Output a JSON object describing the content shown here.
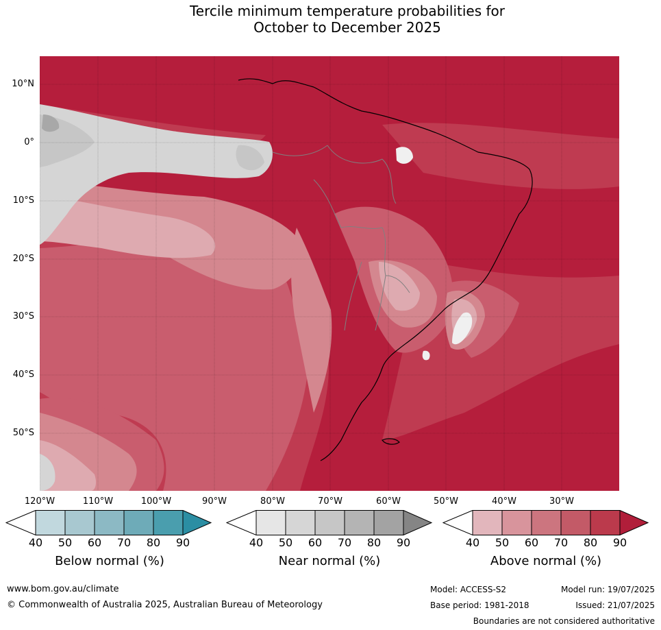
{
  "title_line1": "Tercile minimum temperature probabilities for",
  "title_line2": "October to December 2025",
  "map": {
    "lat_labels": [
      "10°N",
      "0°",
      "10°S",
      "20°S",
      "30°S",
      "40°S",
      "50°S"
    ],
    "lon_labels": [
      "120°W",
      "110°W",
      "100°W",
      "90°W",
      "80°W",
      "70°W",
      "60°W",
      "50°W",
      "40°W",
      "30°W"
    ],
    "colors": {
      "above_90": "#b51e3c",
      "above_80": "#bf3b51",
      "above_70": "#c95d6e",
      "above_60": "#d4878f",
      "above_50": "#deaab0",
      "near_50": "#d5d5d5",
      "near_60": "#c6c6c6",
      "near_70": "#a8a8a8",
      "white": "#f0f0f0",
      "coast": "#000000",
      "borders": "#808080"
    }
  },
  "legend": {
    "below": {
      "title": "Below normal (%)",
      "ticks": [
        "40",
        "50",
        "60",
        "70",
        "80",
        "90"
      ],
      "colors": [
        "#c1d8de",
        "#a8c8d0",
        "#8cb9c4",
        "#6eabb8",
        "#4a9eae",
        "#2b8ea3"
      ]
    },
    "near": {
      "title": "Near normal (%)",
      "ticks": [
        "40",
        "50",
        "60",
        "70",
        "80",
        "90"
      ],
      "colors": [
        "#e6e6e6",
        "#d6d6d6",
        "#c6c6c6",
        "#b4b4b4",
        "#a3a3a3",
        "#858585"
      ]
    },
    "above": {
      "title": "Above normal (%)",
      "ticks": [
        "40",
        "50",
        "60",
        "70",
        "80",
        "90"
      ],
      "colors": [
        "#e2b6bc",
        "#d8949c",
        "#cc757f",
        "#c35a67",
        "#bb3a4c",
        "#b11e3a"
      ]
    }
  },
  "footer": {
    "website": "www.bom.gov.au/climate",
    "copyright": "© Commonwealth of Australia 2025, Australian Bureau of Meteorology",
    "model": "Model: ACCESS-S2",
    "base_period": "Base period: 1981-2018",
    "model_run": "Model run: 19/07/2025",
    "issued": "Issued: 21/07/2025",
    "disclaimer": "Boundaries are not considered authoritative"
  }
}
